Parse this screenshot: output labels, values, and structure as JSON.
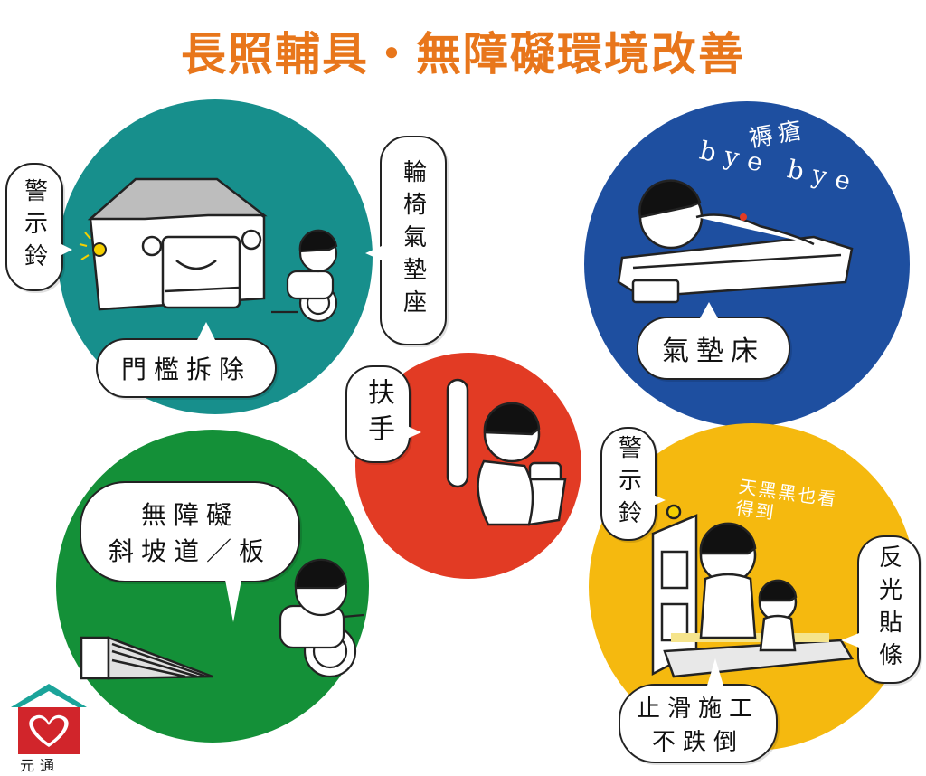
{
  "title": "長照輔具・無障礙環境改善",
  "colors": {
    "title": "#e8761b",
    "teal": "#178f8c",
    "blue": "#1e4fa0",
    "red": "#e23b24",
    "green": "#149038",
    "yellow": "#f5b90f",
    "logo_red": "#d1252b",
    "logo_roof": "#1ba49a"
  },
  "panels": {
    "house": {
      "labels": {
        "doorbell": "警示鈴",
        "threshold": "門檻拆除",
        "cushion": "輪椅氣墊座"
      }
    },
    "bed": {
      "handwriting_top": "褥瘡",
      "handwriting_bottom": "bye bye",
      "label": "氣墊床"
    },
    "toilet": {
      "label": "扶手"
    },
    "ramp": {
      "label_line1": "無障礙",
      "label_line2": "斜坡道／板"
    },
    "door": {
      "doorbell": "警示鈴",
      "handwriting": "天黑黑也看得到",
      "reflective": "反光貼條",
      "nonslip_line1": "止滑施工",
      "nonslip_line2": "不跌倒"
    }
  },
  "logo": {
    "icon": "heart-house-icon",
    "text": "元通"
  }
}
